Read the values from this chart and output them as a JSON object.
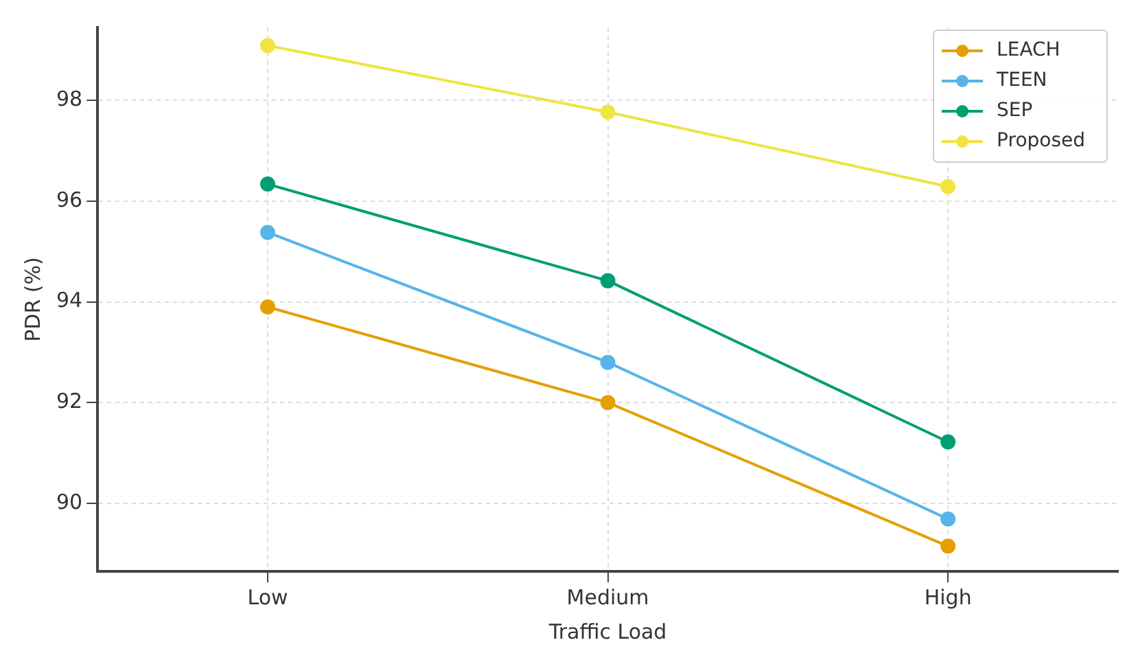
{
  "chart_data": {
    "type": "line",
    "xlabel": "Traffic Load",
    "ylabel": "PDR (%)",
    "categories": [
      "Low",
      "Medium",
      "High"
    ],
    "series": [
      {
        "name": "LEACH",
        "color": "#e69f00",
        "values": [
          93.9,
          92.0,
          89.15
        ]
      },
      {
        "name": "TEEN",
        "color": "#56b4e9",
        "values": [
          95.38,
          92.8,
          89.69
        ]
      },
      {
        "name": "SEP",
        "color": "#009e73",
        "values": [
          96.34,
          94.42,
          91.22
        ]
      },
      {
        "name": "Proposed",
        "color": "#f0e442",
        "values": [
          99.09,
          97.77,
          96.29
        ]
      }
    ],
    "ylim": [
      88.65,
      99.45
    ],
    "yticks": [
      90,
      92,
      94,
      96,
      98
    ],
    "grid": true,
    "legend": "top right",
    "marker": "circle",
    "line_style": "solid"
  }
}
